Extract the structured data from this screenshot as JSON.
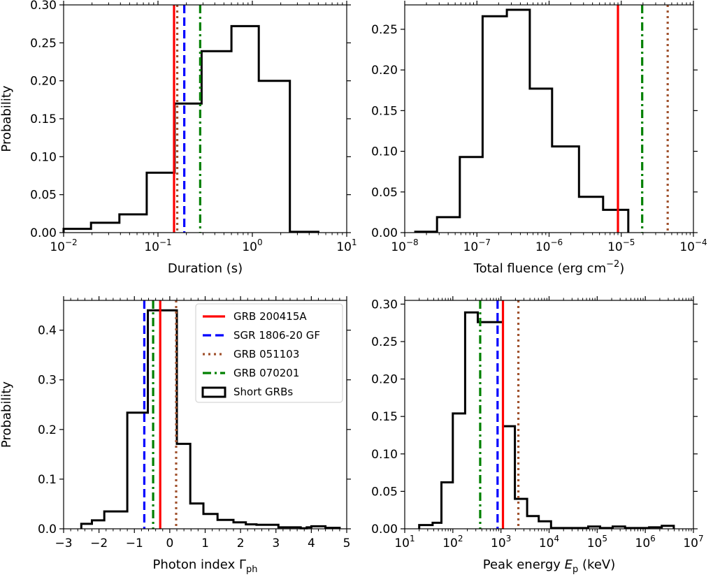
{
  "chart_data": [
    {
      "type": "histogram",
      "panel": "duration",
      "xscale": "log",
      "xlim": [
        0.01,
        10
      ],
      "ylim": [
        0,
        0.3
      ],
      "xlabel": "Duration (s)",
      "ylabel": "Probability",
      "x_ticks": [
        0.01,
        0.1,
        1,
        10
      ],
      "x_tick_labels": [
        {
          "base": "10",
          "exp": "−2"
        },
        {
          "base": "10",
          "exp": "−1"
        },
        {
          "base": "10",
          "exp": "0"
        },
        {
          "base": "10",
          "exp": "1"
        }
      ],
      "y_ticks": [
        0,
        0.05,
        0.1,
        0.15,
        0.2,
        0.25,
        0.3
      ],
      "y_tick_labels": [
        "0.00",
        "0.05",
        "0.10",
        "0.15",
        "0.20",
        "0.25",
        "0.30"
      ],
      "bin_edges": [
        0.01,
        0.0195,
        0.039,
        0.076,
        0.15,
        0.29,
        0.6,
        1.17,
        2.5,
        5.0
      ],
      "values": [
        0.005,
        0.013,
        0.024,
        0.079,
        0.17,
        0.239,
        0.272,
        0.2,
        0.001
      ],
      "markers": [
        {
          "id": "grb200415a",
          "x": 0.148
        },
        {
          "id": "sgr1806",
          "x": 0.19
        },
        {
          "id": "grb051103",
          "x": 0.16
        },
        {
          "id": "grb070201",
          "x": 0.28
        }
      ]
    },
    {
      "type": "histogram",
      "panel": "fluence",
      "xscale": "log",
      "xlim": [
        1e-08,
        0.0001
      ],
      "ylim": [
        0,
        0.28
      ],
      "xlabel": "Total fluence (erg cm",
      "xlabel_sup": "−2",
      "xlabel_end": ")",
      "ylabel": "",
      "x_ticks": [
        1e-08,
        1e-07,
        1e-06,
        1e-05,
        0.0001
      ],
      "x_tick_labels": [
        {
          "base": "10",
          "exp": "−8"
        },
        {
          "base": "10",
          "exp": "−7"
        },
        {
          "base": "10",
          "exp": "−6"
        },
        {
          "base": "10",
          "exp": "−5"
        },
        {
          "base": "10",
          "exp": "−4"
        }
      ],
      "y_ticks": [
        0,
        0.05,
        0.1,
        0.15,
        0.2,
        0.25
      ],
      "y_tick_labels": [
        "0.00",
        "0.05",
        "0.10",
        "0.15",
        "0.20",
        "0.25"
      ],
      "bin_edges": [
        1.4e-08,
        2.8e-08,
        5.8e-08,
        1.2e-07,
        2.6e-07,
        5.4e-07,
        1.1e-06,
        2.6e-06,
        5.6e-06,
        1.25e-05
      ],
      "values": [
        0.001,
        0.019,
        0.093,
        0.266,
        0.274,
        0.177,
        0.106,
        0.044,
        0.028
      ],
      "markers": [
        {
          "id": "grb200415a",
          "x": 9e-06
        },
        {
          "id": "grb070201",
          "x": 1.95e-05
        },
        {
          "id": "grb051103",
          "x": 4.4e-05
        }
      ]
    },
    {
      "type": "histogram",
      "panel": "photon-index",
      "xscale": "linear",
      "xlim": [
        -3,
        5
      ],
      "ylim": [
        0,
        0.46
      ],
      "xlabel": "Photon index Γ",
      "xlabel_sub": "ph",
      "ylabel": "Probability",
      "x_ticks": [
        -3,
        -2,
        -1,
        0,
        1,
        2,
        3,
        4,
        5
      ],
      "x_tick_labels": [
        "−3",
        "−2",
        "−1",
        "0",
        "1",
        "2",
        "3",
        "4",
        "5"
      ],
      "y_ticks": [
        0,
        0.1,
        0.2,
        0.3,
        0.4
      ],
      "y_tick_labels": [
        "0.0",
        "0.1",
        "0.2",
        "0.3",
        "0.4"
      ],
      "bin_edges": [
        -2.5,
        -2.2,
        -1.85,
        -1.2,
        -0.62,
        -0.19,
        0.2,
        0.58,
        0.95,
        1.35,
        1.8,
        2.15,
        2.45,
        3.07,
        3.7,
        3.87,
        4.0,
        4.4,
        4.8
      ],
      "values": [
        0.01,
        0.017,
        0.035,
        0.234,
        0.44,
        0.44,
        0.171,
        0.051,
        0.03,
        0.018,
        0.013,
        0.009,
        0.008,
        0.003,
        0.001,
        0.003,
        0.005,
        0.002
      ],
      "markers": [
        {
          "id": "sgr1806",
          "x": -0.72
        },
        {
          "id": "grb070201",
          "x": -0.47
        },
        {
          "id": "grb200415a",
          "x": -0.27
        },
        {
          "id": "grb051103",
          "x": 0.18
        }
      ]
    },
    {
      "type": "histogram",
      "panel": "peak-energy",
      "xscale": "log",
      "xlim": [
        10,
        10000000.0
      ],
      "ylim": [
        0,
        0.305
      ],
      "xlabel": "Peak energy ",
      "xlabel_italic": "E",
      "xlabel_sub": "p",
      "xlabel_end": " (keV)",
      "ylabel": "",
      "x_ticks": [
        10,
        100,
        1000,
        10000,
        100000,
        1000000,
        10000000
      ],
      "x_tick_labels": [
        {
          "base": "10",
          "exp": "1"
        },
        {
          "base": "10",
          "exp": "2"
        },
        {
          "base": "10",
          "exp": "3"
        },
        {
          "base": "10",
          "exp": "4"
        },
        {
          "base": "10",
          "exp": "5"
        },
        {
          "base": "10",
          "exp": "6"
        },
        {
          "base": "10",
          "exp": "7"
        }
      ],
      "y_ticks": [
        0,
        0.05,
        0.1,
        0.15,
        0.2,
        0.25,
        0.3
      ],
      "y_tick_labels": [
        "0.00",
        "0.05",
        "0.10",
        "0.15",
        "0.20",
        "0.25",
        "0.30"
      ],
      "bin_edges": [
        20,
        38,
        58,
        100,
        180,
        330,
        620,
        1100,
        1950,
        3500,
        6100,
        11000,
        20000,
        36000,
        65000,
        115000,
        210000,
        380000,
        680000,
        1200000,
        2200000,
        3900000
      ],
      "values": [
        0.005,
        0.008,
        0.062,
        0.154,
        0.289,
        0.276,
        0.276,
        0.137,
        0.04,
        0.017,
        0.01,
        0.001,
        0.001,
        0.001,
        0.003,
        0.001,
        0.003,
        0.001,
        0.001,
        0.002,
        0.004
      ],
      "markers": [
        {
          "id": "grb070201",
          "x": 370
        },
        {
          "id": "sgr1806",
          "x": 850
        },
        {
          "id": "grb200415a",
          "x": 1100
        },
        {
          "id": "grb051103",
          "x": 2300
        }
      ]
    }
  ],
  "styles": {
    "grb200415a": {
      "color": "#ff0000",
      "dash": ""
    },
    "sgr1806": {
      "color": "#0000ff",
      "dash": "12,6"
    },
    "grb051103": {
      "color": "#a0522d",
      "dash": "3,5"
    },
    "grb070201": {
      "color": "#008000",
      "dash": "12,5,3,5"
    },
    "hist": {
      "color": "#000000"
    }
  },
  "legend": {
    "entries": [
      {
        "id": "grb200415a",
        "label": "GRB 200415A"
      },
      {
        "id": "sgr1806",
        "label": "SGR 1806-20 GF"
      },
      {
        "id": "grb051103",
        "label": "GRB 051103"
      },
      {
        "id": "grb070201",
        "label": "GRB 070201"
      },
      {
        "id": "hist",
        "label": "Short GRBs"
      }
    ],
    "placement": "upper-right of photon-index panel"
  }
}
